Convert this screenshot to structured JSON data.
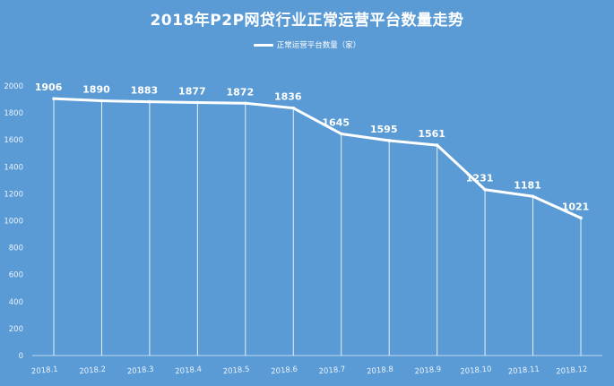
{
  "chart_data": {
    "type": "line",
    "title": "2018年P2P网贷行业正常运营平台数量走势",
    "categories": [
      "2018.1",
      "2018.2",
      "2018.3",
      "2018.4",
      "2018.5",
      "2018.6",
      "2018.7",
      "2018.8",
      "2018.9",
      "2018.10",
      "2018.11",
      "2018.12"
    ],
    "series": [
      {
        "name": "正常运营平台数量（家）",
        "values": [
          1906,
          1890,
          1883,
          1877,
          1872,
          1836,
          1645,
          1595,
          1561,
          1231,
          1181,
          1021
        ]
      }
    ],
    "yticks": [
      "0",
      "200",
      "400",
      "600",
      "800",
      "1000",
      "1200",
      "1400",
      "1600",
      "1800",
      "2000"
    ],
    "ylim": [
      0,
      2000
    ],
    "legend_position": "top-center",
    "grid": false,
    "colors": {
      "background": "#5a9bd5",
      "line": "#ffffff",
      "drop_lines": "#ffffff",
      "text": "#ffffff"
    }
  }
}
